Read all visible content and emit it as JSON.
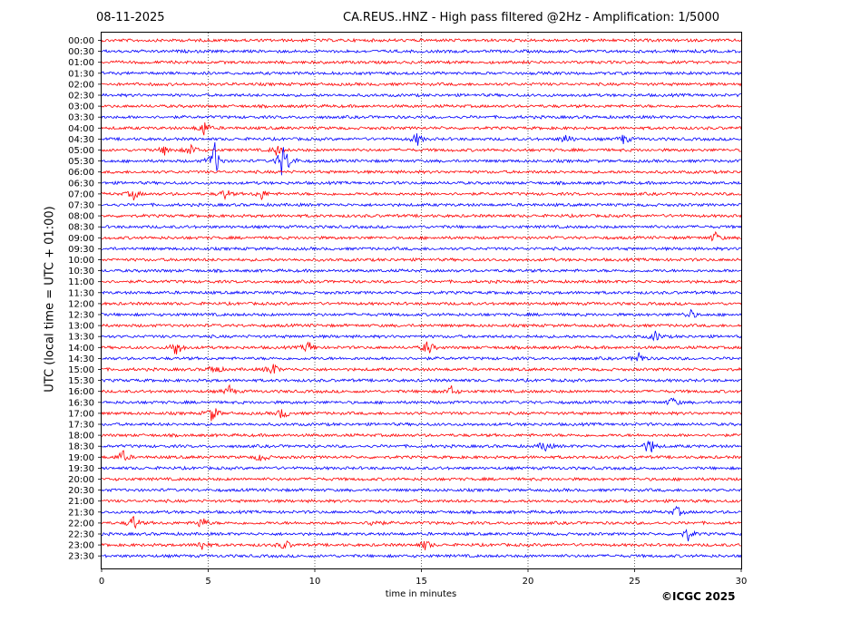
{
  "header": {
    "date": "08-11-2025",
    "title": "CA.REUS..HNZ - High pass filtered @2Hz - Amplification: 1/5000"
  },
  "footer": {
    "copyright": "©ICGC 2025"
  },
  "chart_data": {
    "type": "line",
    "title": "CA.REUS..HNZ - High pass filtered @2Hz - Amplification: 1/5000",
    "xlabel": "time in minutes",
    "ylabel": "UTC (local time = UTC + 01:00)",
    "xlim": [
      0,
      30
    ],
    "x_ticks": [
      0,
      5,
      10,
      15,
      20,
      25,
      30
    ],
    "grid": "vertical dotted at 5-minute intervals",
    "colors": {
      "even_rows": "#ff0000",
      "odd_rows": "#0000ff"
    },
    "rows": [
      "00:00",
      "00:30",
      "01:00",
      "01:30",
      "02:00",
      "02:30",
      "03:00",
      "03:30",
      "04:00",
      "04:30",
      "05:00",
      "05:30",
      "06:00",
      "06:30",
      "07:00",
      "07:30",
      "08:00",
      "08:30",
      "09:00",
      "09:30",
      "10:00",
      "10:30",
      "11:00",
      "11:30",
      "12:00",
      "12:30",
      "13:00",
      "13:30",
      "14:00",
      "14:30",
      "15:00",
      "15:30",
      "16:00",
      "16:30",
      "17:00",
      "17:30",
      "18:00",
      "18:30",
      "19:00",
      "19:30",
      "20:00",
      "20:30",
      "21:00",
      "21:30",
      "22:00",
      "22:30",
      "23:00",
      "23:30"
    ],
    "events": [
      {
        "row": "04:00",
        "minute": 4.8,
        "amplitude": 1.5
      },
      {
        "row": "04:30",
        "minute": 14.8,
        "amplitude": 1.2
      },
      {
        "row": "04:30",
        "minute": 21.8,
        "amplitude": 1.0
      },
      {
        "row": "04:30",
        "minute": 24.5,
        "amplitude": 1.0
      },
      {
        "row": "05:00",
        "minute": 3.0,
        "amplitude": 1.0
      },
      {
        "row": "05:00",
        "minute": 4.2,
        "amplitude": 1.2
      },
      {
        "row": "05:00",
        "minute": 8.2,
        "amplitude": 1.0
      },
      {
        "row": "05:30",
        "minute": 5.3,
        "amplitude": 3.5
      },
      {
        "row": "05:30",
        "minute": 8.5,
        "amplitude": 3.5
      },
      {
        "row": "05:30",
        "minute": 8.9,
        "amplitude": 1.0
      },
      {
        "row": "07:00",
        "minute": 1.5,
        "amplitude": 1.0
      },
      {
        "row": "07:00",
        "minute": 5.8,
        "amplitude": 1.0
      },
      {
        "row": "07:00",
        "minute": 7.5,
        "amplitude": 1.0
      },
      {
        "row": "09:00",
        "minute": 28.8,
        "amplitude": 1.0
      },
      {
        "row": "12:30",
        "minute": 27.6,
        "amplitude": 1.0
      },
      {
        "row": "13:30",
        "minute": 26.0,
        "amplitude": 1.0
      },
      {
        "row": "14:00",
        "minute": 3.5,
        "amplitude": 1.8
      },
      {
        "row": "14:00",
        "minute": 9.7,
        "amplitude": 1.2
      },
      {
        "row": "14:00",
        "minute": 15.3,
        "amplitude": 1.5
      },
      {
        "row": "14:30",
        "minute": 25.2,
        "amplitude": 1.2
      },
      {
        "row": "15:00",
        "minute": 5.3,
        "amplitude": 1.2
      },
      {
        "row": "15:00",
        "minute": 8.0,
        "amplitude": 1.5
      },
      {
        "row": "16:00",
        "minute": 6.0,
        "amplitude": 1.0
      },
      {
        "row": "16:00",
        "minute": 16.4,
        "amplitude": 1.0
      },
      {
        "row": "16:30",
        "minute": 26.8,
        "amplitude": 1.0
      },
      {
        "row": "17:00",
        "minute": 5.2,
        "amplitude": 1.8
      },
      {
        "row": "17:00",
        "minute": 8.5,
        "amplitude": 1.2
      },
      {
        "row": "18:30",
        "minute": 20.8,
        "amplitude": 1.2
      },
      {
        "row": "18:30",
        "minute": 25.7,
        "amplitude": 1.8
      },
      {
        "row": "19:00",
        "minute": 1.0,
        "amplitude": 1.2
      },
      {
        "row": "19:00",
        "minute": 7.5,
        "amplitude": 1.0
      },
      {
        "row": "21:30",
        "minute": 27.0,
        "amplitude": 1.0
      },
      {
        "row": "22:00",
        "minute": 1.5,
        "amplitude": 1.5
      },
      {
        "row": "22:00",
        "minute": 4.7,
        "amplitude": 1.2
      },
      {
        "row": "22:00",
        "minute": 12.8,
        "amplitude": 1.0
      },
      {
        "row": "22:30",
        "minute": 27.5,
        "amplitude": 1.2
      },
      {
        "row": "23:00",
        "minute": 4.7,
        "amplitude": 1.0
      },
      {
        "row": "23:00",
        "minute": 8.6,
        "amplitude": 1.0
      },
      {
        "row": "23:00",
        "minute": 15.2,
        "amplitude": 1.0
      }
    ]
  }
}
